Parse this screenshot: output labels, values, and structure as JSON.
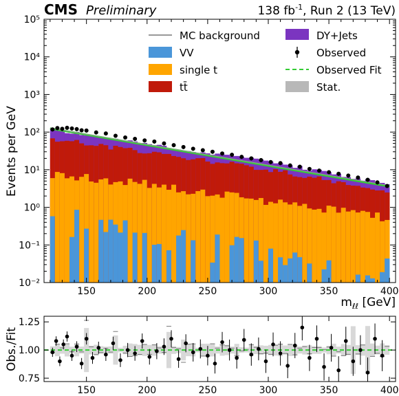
{
  "header": {
    "experiment": "CMS",
    "status": "Preliminary",
    "lumi_text": "138 fb",
    "lumi_sup": "-1",
    "lumi_suffix": ", Run 2 (13 TeV)"
  },
  "legend": {
    "mc_background": "MC background",
    "vv": "VV",
    "single_t": "single t",
    "ttbar": "tt̄",
    "dyjets": "DY+Jets",
    "observed": "Observed",
    "observed_fit": "Observed Fit",
    "stat": "Stat."
  },
  "colors": {
    "vv": "#4a96d9",
    "single_t": "#ffa500",
    "ttbar": "#c01a0a",
    "dyjets": "#7b35c0",
    "fit": "#33cc33",
    "stat": "#b8b8b8",
    "mc_line": "#999999",
    "observed": "#000000"
  },
  "chart_data": [
    {
      "type": "bar",
      "stacked": true,
      "log_y": true,
      "xlabel": "m_ℓℓ [GeV]",
      "ylabel": "Events per GeV",
      "xlim": [
        115,
        405
      ],
      "ylim": [
        0.01,
        100000
      ],
      "x_ticks": [
        150,
        200,
        250,
        300,
        350,
        400
      ],
      "y_ticks": [
        "10⁻²",
        "10⁻¹",
        "10⁰",
        "10¹",
        "10²",
        "10³",
        "10⁴",
        "10⁵"
      ],
      "legend_position": "top-right",
      "x_range": [
        120,
        400
      ],
      "bin_width": 4,
      "series": [
        {
          "name": "DY+Jets",
          "values_at": {
            "120": 120,
            "200": 48,
            "300": 17,
            "400": 4.0
          }
        },
        {
          "name": "tt̄",
          "values_at": {
            "120": 72,
            "200": 30,
            "300": 11,
            "400": 2.7
          }
        },
        {
          "name": "single t",
          "values_at": {
            "120": 8,
            "200": 4.5,
            "300": 1.6,
            "400": 0.55
          }
        },
        {
          "name": "VV",
          "values_at": {
            "120": 0.5,
            "200": 0.2,
            "300": 0.05,
            "400": 0.03
          }
        }
      ],
      "observed_fit": {
        "x": [
          120,
          400
        ],
        "y": [
          125,
          3.6
        ]
      },
      "observed": {
        "x": [
          122,
          126,
          130,
          134,
          138,
          142,
          146,
          150,
          158,
          166,
          174,
          182,
          190,
          198,
          206,
          214,
          222,
          230,
          238,
          246,
          254,
          262,
          270,
          278,
          286,
          294,
          302,
          310,
          318,
          326,
          334,
          342,
          350,
          358,
          366,
          374,
          382,
          390,
          398
        ],
        "y": [
          118,
          128,
          122,
          130,
          125,
          120,
          112,
          110,
          98,
          92,
          80,
          72,
          66,
          60,
          56,
          50,
          45,
          40,
          36,
          33,
          30,
          27,
          25,
          22,
          20,
          18,
          16,
          15,
          13,
          12,
          10.5,
          9.5,
          8.6,
          7.8,
          7.0,
          6.2,
          5.4,
          4.6,
          3.7
        ]
      }
    },
    {
      "type": "scatter",
      "ylabel": "Obs./Fit",
      "xlim": [
        115,
        405
      ],
      "ylim": [
        0.72,
        1.3
      ],
      "y_ticks": [
        0.75,
        1.0,
        1.25
      ],
      "x_ticks": [
        150,
        200,
        250,
        300,
        350,
        400
      ],
      "reference_line": 1.0,
      "x": [
        122,
        125,
        128,
        131,
        134,
        138,
        142,
        146,
        150,
        155,
        160,
        166,
        172,
        178,
        184,
        190,
        196,
        202,
        208,
        214,
        220,
        226,
        232,
        238,
        244,
        250,
        256,
        262,
        268,
        274,
        280,
        286,
        292,
        298,
        304,
        310,
        316,
        322,
        328,
        334,
        340,
        346,
        352,
        358,
        364,
        370,
        376,
        382,
        388,
        394
      ],
      "y": [
        0.98,
        1.08,
        0.9,
        1.05,
        1.12,
        0.95,
        1.03,
        0.88,
        1.1,
        0.93,
        1.02,
        0.96,
        1.06,
        0.91,
        1.0,
        0.97,
        1.08,
        0.94,
        0.99,
        1.03,
        1.1,
        0.92,
        1.06,
        0.98,
        1.01,
        0.95,
        0.88,
        1.07,
        1.0,
        0.93,
        1.09,
        0.96,
        1.01,
        0.9,
        1.05,
        0.97,
        0.86,
        1.04,
        1.2,
        0.93,
        1.1,
        0.85,
        1.02,
        0.82,
        1.08,
        0.9,
        1.0,
        0.8,
        1.1,
        0.95
      ]
    }
  ]
}
